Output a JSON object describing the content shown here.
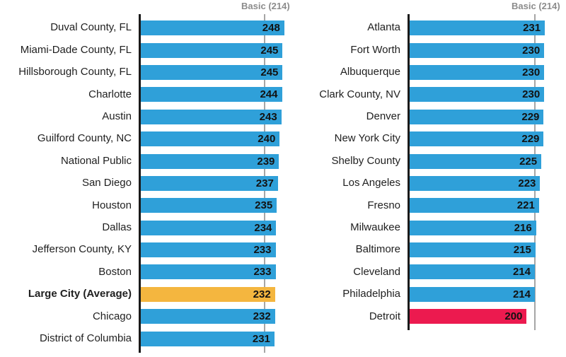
{
  "colors": {
    "bar_default": "#2FA0D9",
    "bar_highlight_average": "#F4B63F",
    "bar_highlight_low": "#EC1A4F",
    "axis": "#1A1A1A",
    "reference_line": "#A6A6A6",
    "reference_label_text": "#8C8C8C",
    "category_label_text": "#1F1F1F",
    "value_label_text": "#121212",
    "background": "#FFFFFF"
  },
  "chart_data": [
    {
      "type": "bar",
      "orientation": "horizontal",
      "title": "",
      "xlabel": "",
      "ylabel": "",
      "xlim": [
        0,
        266
      ],
      "grid": false,
      "legend": false,
      "value_labels": "inside-end",
      "reference_line": {
        "label": "Basic (214)",
        "value": 214
      },
      "items": [
        {
          "label": "Duval County, FL",
          "value": 248
        },
        {
          "label": "Miami-Dade County, FL",
          "value": 245
        },
        {
          "label": "Hillsborough County, FL",
          "value": 245
        },
        {
          "label": "Charlotte",
          "value": 244
        },
        {
          "label": "Austin",
          "value": 243
        },
        {
          "label": "Guilford County, NC",
          "value": 240
        },
        {
          "label": "National Public",
          "value": 239
        },
        {
          "label": "San Diego",
          "value": 237
        },
        {
          "label": "Houston",
          "value": 235
        },
        {
          "label": "Dallas",
          "value": 234
        },
        {
          "label": "Jefferson County, KY",
          "value": 233
        },
        {
          "label": "Boston",
          "value": 233
        },
        {
          "label": "Large City (Average)",
          "value": 232,
          "color": "bar_highlight_average",
          "bold": true
        },
        {
          "label": "Chicago",
          "value": 232
        },
        {
          "label": "District of Columbia",
          "value": 231
        }
      ]
    },
    {
      "type": "bar",
      "orientation": "horizontal",
      "title": "",
      "xlabel": "",
      "ylabel": "",
      "xlim": [
        0,
        268
      ],
      "grid": false,
      "legend": false,
      "value_labels": "inside-end",
      "reference_line": {
        "label": "Basic (214)",
        "value": 214
      },
      "items": [
        {
          "label": "Atlanta",
          "value": 231
        },
        {
          "label": "Fort Worth",
          "value": 230
        },
        {
          "label": "Albuquerque",
          "value": 230
        },
        {
          "label": "Clark County, NV",
          "value": 230
        },
        {
          "label": "Denver",
          "value": 229
        },
        {
          "label": "New York City",
          "value": 229
        },
        {
          "label": "Shelby County",
          "value": 225
        },
        {
          "label": "Los Angeles",
          "value": 223
        },
        {
          "label": "Fresno",
          "value": 221
        },
        {
          "label": "Milwaukee",
          "value": 216
        },
        {
          "label": "Baltimore",
          "value": 215
        },
        {
          "label": "Cleveland",
          "value": 214
        },
        {
          "label": "Philadelphia",
          "value": 214
        },
        {
          "label": "Detroit",
          "value": 200,
          "color": "bar_highlight_low"
        }
      ]
    }
  ]
}
